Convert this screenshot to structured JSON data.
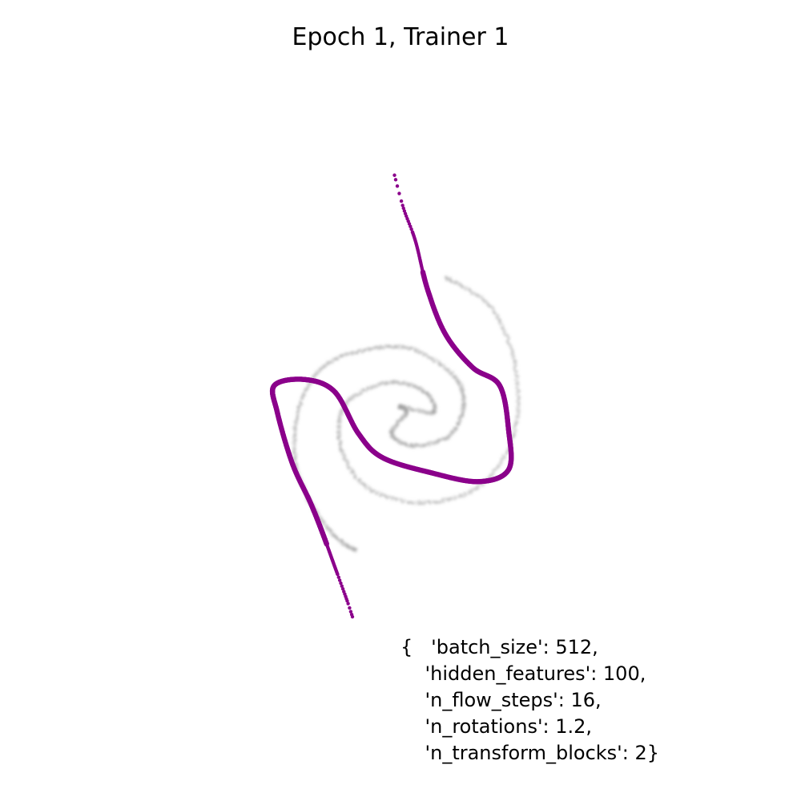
{
  "title": "Epoch 1, Trainer 1",
  "config_lines": [
    "{   'batch_size': 512,",
    "    'hidden_features': 100,",
    "    'n_flow_steps': 16,",
    "    'n_rotations': 1.2,",
    "    'n_transform_blocks': 2}"
  ],
  "colors": {
    "target_spiral": "#a0a0a0",
    "model_samples": "#8b008b",
    "background": "#ffffff"
  },
  "chart_data": {
    "type": "scatter",
    "title": "Epoch 1, Trainer 1",
    "xlabel": "",
    "ylabel": "",
    "axes_visible": false,
    "grid": false,
    "xlim": [
      -1.0,
      1.0
    ],
    "ylim": [
      -1.0,
      1.0
    ],
    "series": [
      {
        "role": "target",
        "style": "faint gray points forming a two-arm spiral",
        "points": [
          [
            0.15,
            0.41
          ],
          [
            0.3,
            0.31
          ],
          [
            0.38,
            0.12
          ],
          [
            0.38,
            -0.1
          ],
          [
            0.27,
            -0.28
          ],
          [
            0.08,
            -0.34
          ],
          [
            -0.11,
            -0.29
          ],
          [
            -0.2,
            -0.15
          ],
          [
            -0.18,
            -0.01
          ],
          [
            -0.04,
            0.06
          ],
          [
            0.08,
            0.03
          ],
          [
            0.11,
            -0.04
          ],
          [
            -0.0,
            -0.02
          ],
          [
            0.02,
            -0.04
          ],
          [
            -0.03,
            -0.11
          ],
          [
            0.04,
            -0.15
          ],
          [
            0.16,
            -0.12
          ],
          [
            0.21,
            -0.02
          ],
          [
            0.18,
            0.08
          ],
          [
            0.04,
            0.17
          ],
          [
            -0.11,
            0.17
          ],
          [
            -0.26,
            0.11
          ],
          [
            -0.34,
            -0.03
          ],
          [
            -0.35,
            -0.2
          ],
          [
            -0.3,
            -0.34
          ],
          [
            -0.22,
            -0.45
          ],
          [
            -0.15,
            -0.5
          ]
        ]
      },
      {
        "role": "model_samples",
        "style": "purple points forming a curved band",
        "points": [
          [
            -0.02,
            0.75
          ],
          [
            0.01,
            0.64
          ],
          [
            0.05,
            0.53
          ],
          [
            0.09,
            0.37
          ],
          [
            0.15,
            0.22
          ],
          [
            0.24,
            0.11
          ],
          [
            0.33,
            0.05
          ],
          [
            0.36,
            -0.1
          ],
          [
            0.36,
            -0.23
          ],
          [
            0.26,
            -0.27
          ],
          [
            0.1,
            -0.24
          ],
          [
            -0.06,
            -0.19
          ],
          [
            -0.14,
            -0.11
          ],
          [
            -0.22,
            0.03
          ],
          [
            -0.32,
            0.07
          ],
          [
            -0.42,
            0.05
          ],
          [
            -0.41,
            -0.04
          ],
          [
            -0.36,
            -0.21
          ],
          [
            -0.3,
            -0.34
          ],
          [
            -0.26,
            -0.44
          ],
          [
            -0.22,
            -0.55
          ],
          [
            -0.18,
            -0.66
          ],
          [
            -0.16,
            -0.72
          ]
        ]
      }
    ]
  }
}
